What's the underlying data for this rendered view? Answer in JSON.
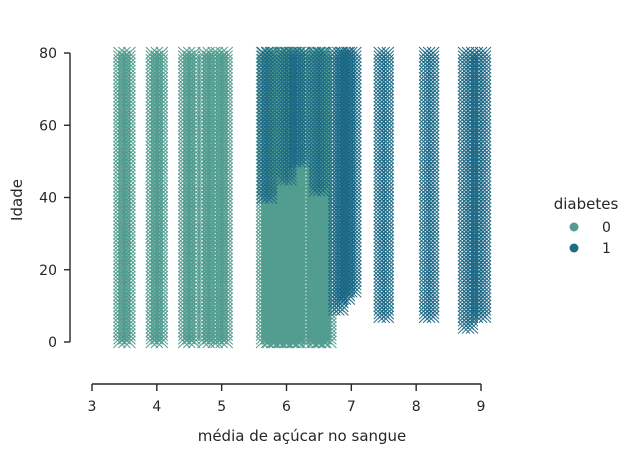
{
  "chart_data": {
    "type": "scatter",
    "marker": "x",
    "xlabel": "média de açúcar no sangue",
    "ylabel": "Idade",
    "xlim": [
      3,
      9
    ],
    "ylim": [
      -11,
      81
    ],
    "x_ticks": [
      "3",
      "4",
      "5",
      "6",
      "7",
      "8",
      "9"
    ],
    "y_ticks": [
      "0",
      "20",
      "40",
      "60",
      "80"
    ],
    "grid": false,
    "legend": {
      "title": "diabetes",
      "placement": "center-right",
      "entries": [
        "0",
        "1"
      ]
    },
    "series": [
      {
        "name": "0",
        "color": "#529d90",
        "columns": [
          {
            "x": 3.5,
            "y_range": [
              0,
              80
            ]
          },
          {
            "x": 4.0,
            "y_range": [
              0,
              80
            ]
          },
          {
            "x": 4.5,
            "y_range": [
              0,
              80
            ]
          },
          {
            "x": 4.8,
            "y_range": [
              0,
              80
            ]
          },
          {
            "x": 5.0,
            "y_range": [
              0,
              80
            ]
          },
          {
            "x": 5.7,
            "y_range": [
              0,
              80
            ]
          },
          {
            "x": 5.8,
            "y_range": [
              0,
              80
            ]
          },
          {
            "x": 5.9,
            "y_range": [
              0,
              80
            ]
          },
          {
            "x": 6.0,
            "y_range": [
              0,
              80
            ]
          },
          {
            "x": 6.1,
            "y_range": [
              0,
              80
            ]
          },
          {
            "x": 6.2,
            "y_range": [
              0,
              80
            ]
          },
          {
            "x": 6.4,
            "y_range": [
              0,
              80
            ]
          },
          {
            "x": 6.5,
            "y_range": [
              0,
              80
            ]
          },
          {
            "x": 6.6,
            "y_range": [
              0,
              80
            ]
          }
        ]
      },
      {
        "name": "1",
        "color": "#1f6b87",
        "columns": [
          {
            "x": 5.7,
            "y_range": [
              40,
              80
            ]
          },
          {
            "x": 6.0,
            "y_range": [
              45,
              80
            ]
          },
          {
            "x": 6.2,
            "y_range": [
              50,
              80
            ]
          },
          {
            "x": 6.5,
            "y_range": [
              42,
              80
            ]
          },
          {
            "x": 6.8,
            "y_range": [
              9,
              80
            ]
          },
          {
            "x": 6.9,
            "y_range": [
              12,
              80
            ]
          },
          {
            "x": 7.0,
            "y_range": [
              14,
              80
            ]
          },
          {
            "x": 7.5,
            "y_range": [
              7,
              80
            ]
          },
          {
            "x": 8.2,
            "y_range": [
              7,
              80
            ]
          },
          {
            "x": 8.8,
            "y_range": [
              4,
              80
            ]
          },
          {
            "x": 9.0,
            "y_range": [
              7,
              80
            ]
          }
        ]
      }
    ]
  }
}
